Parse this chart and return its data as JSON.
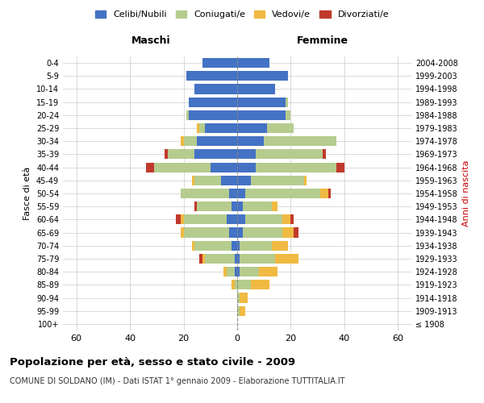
{
  "age_groups": [
    "100+",
    "95-99",
    "90-94",
    "85-89",
    "80-84",
    "75-79",
    "70-74",
    "65-69",
    "60-64",
    "55-59",
    "50-54",
    "45-49",
    "40-44",
    "35-39",
    "30-34",
    "25-29",
    "20-24",
    "15-19",
    "10-14",
    "5-9",
    "0-4"
  ],
  "birth_years": [
    "≤ 1908",
    "1909-1913",
    "1914-1918",
    "1919-1923",
    "1924-1928",
    "1929-1933",
    "1934-1938",
    "1939-1943",
    "1944-1948",
    "1949-1953",
    "1954-1958",
    "1959-1963",
    "1964-1968",
    "1969-1973",
    "1974-1978",
    "1979-1983",
    "1984-1988",
    "1989-1993",
    "1994-1998",
    "1999-2003",
    "2004-2008"
  ],
  "colors": {
    "celibi": "#4472c4",
    "coniugati": "#b5cc8e",
    "vedovi": "#f0b942",
    "divorziati": "#c0392b"
  },
  "males": {
    "celibi": [
      0,
      0,
      0,
      0,
      1,
      1,
      2,
      3,
      4,
      2,
      3,
      6,
      10,
      16,
      15,
      12,
      18,
      18,
      16,
      19,
      13
    ],
    "coniugati": [
      0,
      0,
      0,
      1,
      3,
      11,
      14,
      17,
      16,
      13,
      18,
      10,
      21,
      10,
      5,
      2,
      1,
      0,
      0,
      0,
      0
    ],
    "vedovi": [
      0,
      0,
      0,
      1,
      1,
      1,
      1,
      1,
      1,
      0,
      0,
      1,
      0,
      0,
      1,
      1,
      0,
      0,
      0,
      0,
      0
    ],
    "divorziati": [
      0,
      0,
      0,
      0,
      0,
      1,
      0,
      0,
      2,
      1,
      0,
      0,
      3,
      1,
      0,
      0,
      0,
      0,
      0,
      0,
      0
    ]
  },
  "females": {
    "celibi": [
      0,
      0,
      0,
      0,
      1,
      1,
      1,
      2,
      3,
      2,
      3,
      5,
      7,
      7,
      10,
      11,
      18,
      18,
      14,
      19,
      12
    ],
    "coniugati": [
      0,
      1,
      1,
      5,
      7,
      13,
      12,
      15,
      14,
      11,
      28,
      20,
      30,
      25,
      27,
      10,
      2,
      1,
      0,
      0,
      0
    ],
    "vedovi": [
      0,
      2,
      3,
      7,
      7,
      9,
      6,
      4,
      3,
      2,
      3,
      1,
      0,
      0,
      0,
      0,
      0,
      0,
      0,
      0,
      0
    ],
    "divorziati": [
      0,
      0,
      0,
      0,
      0,
      0,
      0,
      2,
      1,
      0,
      1,
      0,
      3,
      1,
      0,
      0,
      0,
      0,
      0,
      0,
      0
    ]
  },
  "xlim": 65,
  "title": "Popolazione per età, sesso e stato civile - 2009",
  "subtitle": "COMUNE DI SOLDANO (IM) - Dati ISTAT 1° gennaio 2009 - Elaborazione TUTTITALIA.IT",
  "ylabel_left": "Fasce di età",
  "ylabel_right": "Anni di nascita",
  "header_male": "Maschi",
  "header_female": "Femmine",
  "bg_color": "#ffffff"
}
